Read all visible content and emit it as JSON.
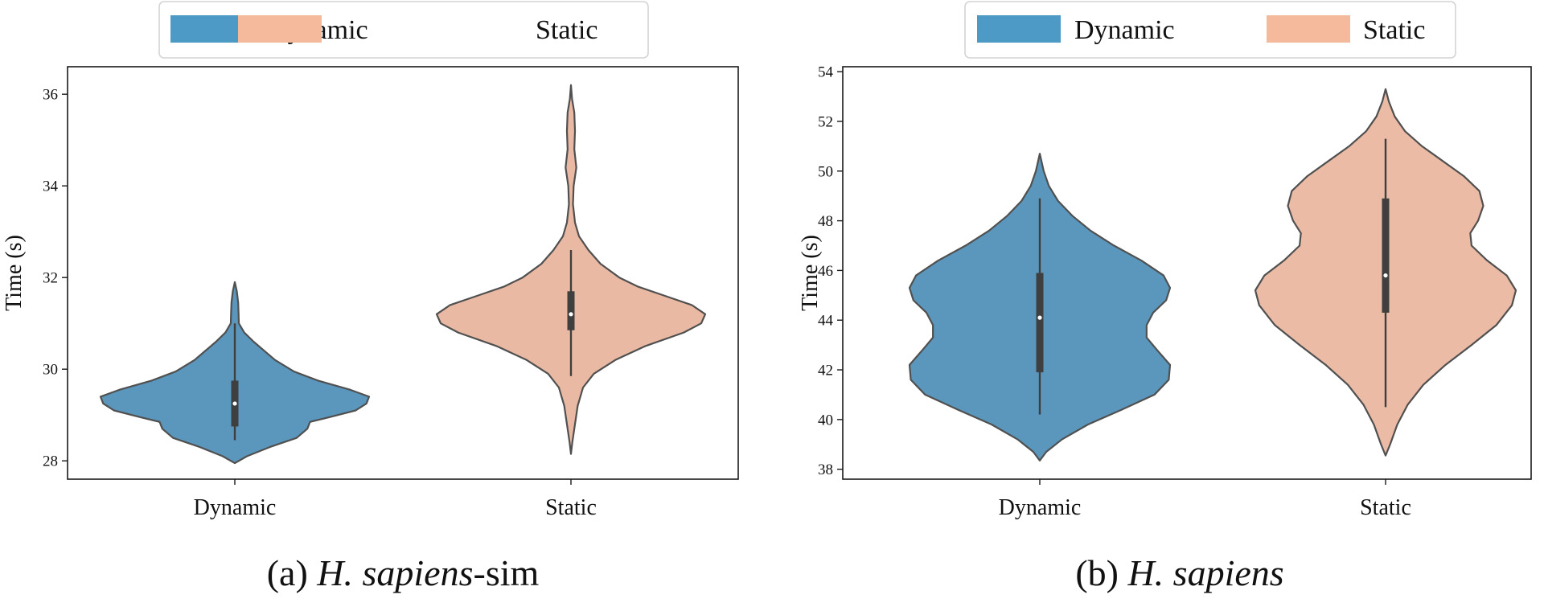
{
  "chart_data": [
    {
      "type": "violin",
      "caption": {
        "prefix": "(a) ",
        "italic": "H. sapiens",
        "suffix": "-sim"
      },
      "ylabel": "Time (s)",
      "xlabel": "",
      "categories": [
        "Dynamic",
        "Static"
      ],
      "ylim": [
        27.6,
        36.6
      ],
      "yticks": [
        "28",
        "30",
        "32",
        "34",
        "36"
      ],
      "legend": {
        "placement": "top-center",
        "entries": [
          {
            "label": "Dynamic",
            "color": "#4e9ac7"
          },
          {
            "label": "Static",
            "color": "#f5b99c"
          }
        ]
      },
      "series": [
        {
          "name": "Dynamic",
          "color": "#5b97bd",
          "min": 28.45,
          "q1": 28.75,
          "median": 29.25,
          "q3": 29.75,
          "max": 31.0,
          "density": [
            [
              27.95,
              0.0
            ],
            [
              28.1,
              0.09
            ],
            [
              28.3,
              0.26
            ],
            [
              28.5,
              0.46
            ],
            [
              28.7,
              0.54
            ],
            [
              28.85,
              0.56
            ],
            [
              28.95,
              0.7
            ],
            [
              29.1,
              0.9
            ],
            [
              29.25,
              0.98
            ],
            [
              29.4,
              1.0
            ],
            [
              29.55,
              0.86
            ],
            [
              29.75,
              0.62
            ],
            [
              29.95,
              0.44
            ],
            [
              30.2,
              0.3
            ],
            [
              30.45,
              0.2
            ],
            [
              30.6,
              0.14
            ],
            [
              30.8,
              0.07
            ],
            [
              31.0,
              0.03
            ],
            [
              31.2,
              0.028
            ],
            [
              31.45,
              0.025
            ],
            [
              31.7,
              0.015
            ],
            [
              31.9,
              0.0
            ]
          ]
        },
        {
          "name": "Static",
          "color": "#eab9a3",
          "min": 29.85,
          "q1": 30.85,
          "median": 31.2,
          "q3": 31.7,
          "max": 32.6,
          "density": [
            [
              28.15,
              0.0
            ],
            [
              28.4,
              0.01
            ],
            [
              28.8,
              0.03
            ],
            [
              29.2,
              0.05
            ],
            [
              29.6,
              0.09
            ],
            [
              29.9,
              0.17
            ],
            [
              30.2,
              0.33
            ],
            [
              30.5,
              0.55
            ],
            [
              30.8,
              0.84
            ],
            [
              31.0,
              0.97
            ],
            [
              31.2,
              1.0
            ],
            [
              31.4,
              0.9
            ],
            [
              31.6,
              0.7
            ],
            [
              31.8,
              0.5
            ],
            [
              32.0,
              0.36
            ],
            [
              32.3,
              0.22
            ],
            [
              32.6,
              0.13
            ],
            [
              32.9,
              0.06
            ],
            [
              33.2,
              0.03
            ],
            [
              33.6,
              0.015
            ],
            [
              34.0,
              0.02
            ],
            [
              34.4,
              0.04
            ],
            [
              34.8,
              0.025
            ],
            [
              35.2,
              0.03
            ],
            [
              35.6,
              0.025
            ],
            [
              35.9,
              0.008
            ],
            [
              36.2,
              0.0
            ]
          ]
        }
      ]
    },
    {
      "type": "violin",
      "caption": {
        "prefix": "(b) ",
        "italic": "H. sapiens",
        "suffix": ""
      },
      "ylabel": "Time (s)",
      "xlabel": "",
      "categories": [
        "Dynamic",
        "Static"
      ],
      "ylim": [
        37.6,
        54.2
      ],
      "yticks": [
        "38",
        "40",
        "42",
        "44",
        "46",
        "48",
        "50",
        "52",
        "54"
      ],
      "legend": {
        "placement": "top-center",
        "entries": [
          {
            "label": "Dynamic",
            "color": "#4e9ac7"
          },
          {
            "label": "Static",
            "color": "#f5b99c"
          }
        ]
      },
      "series": [
        {
          "name": "Dynamic",
          "color": "#5b97bd",
          "min": 40.2,
          "q1": 41.9,
          "median": 44.1,
          "q3": 45.9,
          "max": 48.9,
          "density": [
            [
              38.35,
              0.0
            ],
            [
              38.7,
              0.05
            ],
            [
              39.2,
              0.17
            ],
            [
              39.8,
              0.37
            ],
            [
              40.4,
              0.63
            ],
            [
              41.0,
              0.88
            ],
            [
              41.6,
              0.99
            ],
            [
              42.2,
              1.0
            ],
            [
              42.8,
              0.9
            ],
            [
              43.3,
              0.82
            ],
            [
              43.8,
              0.82
            ],
            [
              44.3,
              0.87
            ],
            [
              44.8,
              0.97
            ],
            [
              45.3,
              1.0
            ],
            [
              45.8,
              0.95
            ],
            [
              46.4,
              0.78
            ],
            [
              47.0,
              0.57
            ],
            [
              47.6,
              0.39
            ],
            [
              48.2,
              0.25
            ],
            [
              48.8,
              0.14
            ],
            [
              49.4,
              0.07
            ],
            [
              50.0,
              0.03
            ],
            [
              50.7,
              0.0
            ]
          ]
        },
        {
          "name": "Static",
          "color": "#ebbba6",
          "min": 40.5,
          "q1": 44.3,
          "median": 45.8,
          "q3": 48.9,
          "max": 51.3,
          "density": [
            [
              38.55,
              0.0
            ],
            [
              39.0,
              0.035
            ],
            [
              39.8,
              0.09
            ],
            [
              40.6,
              0.17
            ],
            [
              41.4,
              0.29
            ],
            [
              42.2,
              0.46
            ],
            [
              43.0,
              0.66
            ],
            [
              43.8,
              0.85
            ],
            [
              44.6,
              0.97
            ],
            [
              45.2,
              1.0
            ],
            [
              45.8,
              0.93
            ],
            [
              46.4,
              0.78
            ],
            [
              47.0,
              0.66
            ],
            [
              47.5,
              0.65
            ],
            [
              48.0,
              0.71
            ],
            [
              48.6,
              0.75
            ],
            [
              49.2,
              0.72
            ],
            [
              49.8,
              0.6
            ],
            [
              50.4,
              0.44
            ],
            [
              51.0,
              0.28
            ],
            [
              51.6,
              0.15
            ],
            [
              52.2,
              0.07
            ],
            [
              52.8,
              0.025
            ],
            [
              53.3,
              0.0
            ]
          ]
        }
      ]
    }
  ]
}
